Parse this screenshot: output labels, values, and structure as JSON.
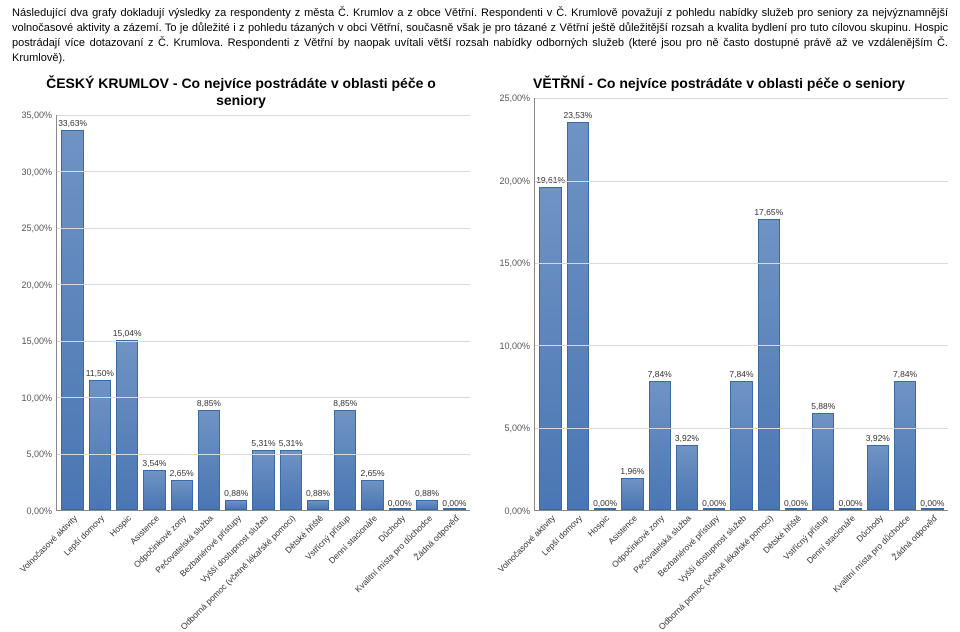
{
  "intro_text": "Následující dva grafy dokladují výsledky za respondenty z města Č. Krumlov a z obce Větřní. Respondenti v Č. Krumlově považují z pohledu nabídky služeb pro seniory za nejvýznamnější volnočasové aktivity a zázemí. To je důležité i z pohledu tázaných v obci Větřní, současně však je pro tázané z Větřní ještě důležitější rozsah a kvalita bydlení pro tuto cílovou skupinu. Hospic postrádají více dotazovaní z Č. Krumlova. Respondenti z Větřní by naopak uvítali větší rozsah nabídky odborných služeb (které jsou pro ně často dostupné právě až ve vzdálenějším Č. Krumlově).",
  "left_chart": {
    "title": "ČESKÝ KRUMLOV - Co nejvíce postrádáte v oblasti péče o seniory",
    "type": "bar",
    "yMax": 35,
    "yTickStep": 5,
    "bar_fill": "#6f93c4",
    "bar_stroke": "#3a6aa6",
    "grid_color": "#d9d9d9",
    "categories": [
      "Volnočasové aktivity",
      "Lepší domovy",
      "Hospic",
      "Asistence",
      "Odpočinkové zony",
      "Pečovatelská služba",
      "Bezbariérové přístupy",
      "Vyšší dostupnost služeb",
      "Odborná pomoc (včetně lékařské pomoci)",
      "Dětské hřiště",
      "Vstřícný přístup",
      "Denní stacionáře",
      "Důchody",
      "Kvalitní místa pro důchodce",
      "Žádná odpověď"
    ],
    "values": [
      33.63,
      11.5,
      15.04,
      3.54,
      2.65,
      8.85,
      0.88,
      5.31,
      5.31,
      0.88,
      8.85,
      2.65,
      0.0,
      0.88,
      0.0
    ],
    "value_labels": [
      "33,63%",
      "11,50%",
      "15,04%",
      "3,54%",
      "2,65%",
      "8,85%",
      "0,88%",
      "5,31%",
      "5,31%",
      "0,88%",
      "8,85%",
      "2,65%",
      "0,00%",
      "0,88%",
      "0,00%"
    ]
  },
  "right_chart": {
    "title": "VĚTŘNÍ - Co nejvíce postrádáte v oblasti péče o seniory",
    "type": "bar",
    "yMax": 25,
    "yTickStep": 5,
    "bar_fill": "#6f93c4",
    "bar_stroke": "#3a6aa6",
    "grid_color": "#d9d9d9",
    "categories": [
      "Volnočasové aktivity",
      "Lepší domovy",
      "Hospic",
      "Asistence",
      "Odpočinkové zony",
      "Pečovatelská služba",
      "Bezbariérové přístupy",
      "Vyšší dostupnost služeb",
      "Odborná pomoc (včetně lékařské pomoci)",
      "Dětské hřiště",
      "Vstřícný přístup",
      "Denní stacionáře",
      "Důchody",
      "Kvalitní místa pro důchodce",
      "Žádná odpověď"
    ],
    "values": [
      19.61,
      23.53,
      0.0,
      1.96,
      7.84,
      3.92,
      0.0,
      7.84,
      17.65,
      0.0,
      5.88,
      0.0,
      3.92,
      7.84,
      0.0
    ],
    "value_labels": [
      "19,61%",
      "23,53%",
      "0,00%",
      "1,96%",
      "7,84%",
      "3,92%",
      "0,00%",
      "7,84%",
      "17,65%",
      "0,00%",
      "5,88%",
      "0,00%",
      "3,92%",
      "7,84%",
      "0,00%"
    ]
  }
}
